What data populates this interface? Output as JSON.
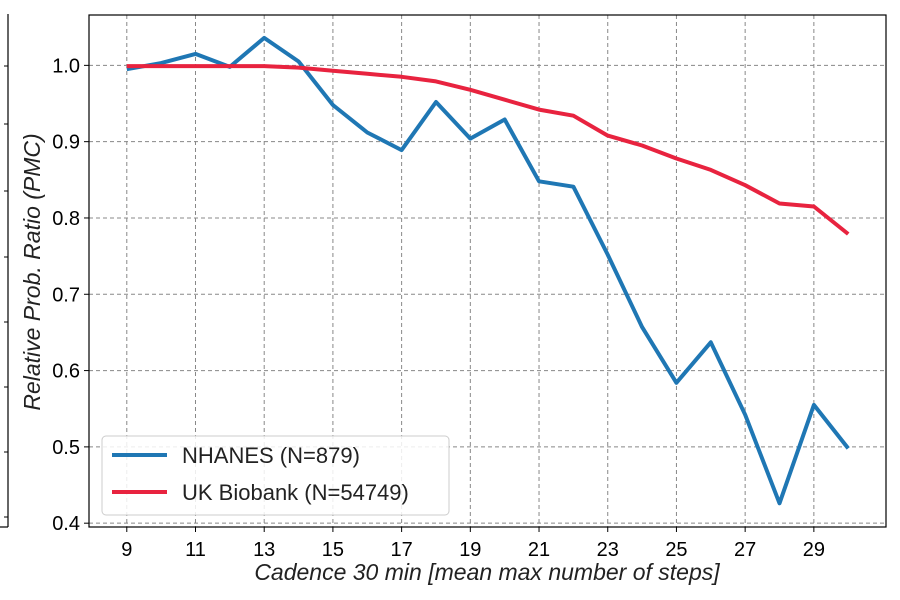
{
  "chart_data": {
    "type": "line",
    "xlabel": "Cadence 30 min [mean max number of steps]",
    "ylabel": "Relative Prob. Ratio (PMC)",
    "xlim": [
      7.9,
      31.1
    ],
    "ylim": [
      0.395,
      1.066
    ],
    "xticks": [
      9,
      11,
      13,
      15,
      17,
      19,
      21,
      23,
      25,
      27,
      29
    ],
    "yticks": [
      0.4,
      0.5,
      0.6,
      0.7,
      0.8,
      0.9,
      1.0
    ],
    "ytick_labels": [
      "0.4",
      "0.5",
      "0.6",
      "0.7",
      "0.8",
      "0.9",
      "1.0"
    ],
    "grid": true,
    "legend_position": "lower-left",
    "x": [
      9,
      10,
      11,
      12,
      13,
      14,
      15,
      16,
      17,
      18,
      19,
      20,
      21,
      22,
      23,
      24,
      25,
      26,
      27,
      28,
      29,
      30
    ],
    "series": [
      {
        "name": "NHANES (N=879)",
        "color": "#1f77b4",
        "values": [
          0.995,
          1.003,
          1.015,
          0.998,
          1.036,
          1.005,
          0.948,
          0.912,
          0.889,
          0.952,
          0.904,
          0.929,
          0.848,
          0.841,
          0.752,
          0.657,
          0.584,
          0.637,
          0.542,
          0.426,
          0.555,
          0.498
        ]
      },
      {
        "name": "UK Biobank (N=54749)",
        "color": "#e8233f",
        "values": [
          0.999,
          0.999,
          0.999,
          0.999,
          0.999,
          0.997,
          0.993,
          0.989,
          0.985,
          0.979,
          0.968,
          0.955,
          0.942,
          0.934,
          0.908,
          0.895,
          0.878,
          0.863,
          0.843,
          0.819,
          0.815,
          0.779
        ]
      }
    ]
  }
}
